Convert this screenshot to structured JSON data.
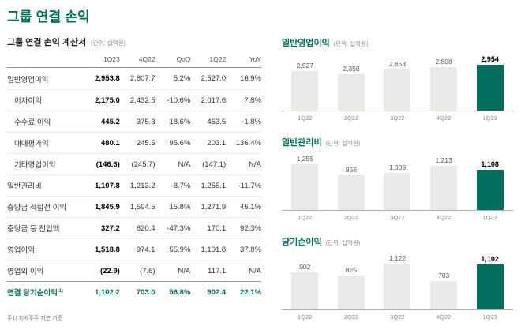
{
  "page": {
    "title": "그룹 연결 손익",
    "footnote": "주1) 지배주주 지분 기준"
  },
  "income_table": {
    "title": "그룹 연결 손익 계산서",
    "unit": "(단위: 십억원)",
    "columns": [
      "1Q23",
      "4Q22",
      "QoQ",
      "1Q22",
      "YoY"
    ],
    "rows": [
      {
        "label": "일반영업이익",
        "values": [
          "2,953.8",
          "2,807.7",
          "5.2%",
          "2,527.0",
          "16.9%"
        ]
      },
      {
        "label": "이자이익",
        "indent": true,
        "values": [
          "2,175.0",
          "2,432.5",
          "-10.6%",
          "2,017.6",
          "7.8%"
        ]
      },
      {
        "label": "수수료 이익",
        "indent": true,
        "values": [
          "445.2",
          "375.3",
          "18.6%",
          "453.5",
          "-1.8%"
        ]
      },
      {
        "label": "매매평가익",
        "indent": true,
        "values": [
          "480.1",
          "245.5",
          "95.6%",
          "203.1",
          "136.4%"
        ]
      },
      {
        "label": "기타영업이익",
        "indent": true,
        "values": [
          "(146.6)",
          "(245.7)",
          "N/A",
          "(147.1)",
          "N/A"
        ]
      },
      {
        "label": "일반관리비",
        "values": [
          "1,107.8",
          "1,213.2",
          "-8.7%",
          "1,255.1",
          "-11.7%"
        ]
      },
      {
        "label": "충당금 적립전 이익",
        "values": [
          "1,845.9",
          "1,594.5",
          "15.8%",
          "1,271.9",
          "45.1%"
        ]
      },
      {
        "label": "충당금 등 전입액",
        "values": [
          "327.2",
          "620.4",
          "-47.3%",
          "170.1",
          "92.3%"
        ]
      },
      {
        "label": "영업이익",
        "values": [
          "1,518.8",
          "974.1",
          "55.9%",
          "1,101.8",
          "37.8%"
        ]
      },
      {
        "label": "영업외 이익",
        "values": [
          "(22.9)",
          "(7.6)",
          "N/A",
          "117.1",
          "N/A"
        ]
      },
      {
        "label": "연결 당기순이익",
        "sup": "1)",
        "highlight": true,
        "values": [
          "1,102.2",
          "703.0",
          "56.8%",
          "902.4",
          "22.1%"
        ]
      }
    ]
  },
  "chart_data": [
    {
      "type": "bar",
      "title": "일반영업이익",
      "unit": "(단위: 십억원)",
      "categories": [
        "1Q22",
        "2Q22",
        "3Q22",
        "4Q22",
        "1Q23"
      ],
      "values": [
        2527,
        2350,
        2653,
        2808,
        2954
      ],
      "highlight_index": 4,
      "bar_color": "#eae9e5",
      "highlight_color": "#00705c",
      "ylim": [
        0,
        2954
      ],
      "grid": false,
      "legend": "none"
    },
    {
      "type": "bar",
      "title": "일반관리비",
      "unit": "(단위: 십억원)",
      "categories": [
        "1Q22",
        "2Q22",
        "3Q22",
        "4Q22",
        "1Q23"
      ],
      "values": [
        1255,
        956,
        1009,
        1213,
        1108
      ],
      "highlight_index": 4,
      "bar_color": "#eae9e5",
      "highlight_color": "#00705c",
      "ylim": [
        0,
        1255
      ],
      "grid": false,
      "legend": "none"
    },
    {
      "type": "bar",
      "title": "당기순이익",
      "unit": "(단위: 십억원)",
      "categories": [
        "1Q22",
        "2Q22",
        "3Q22",
        "4Q22",
        "1Q23"
      ],
      "values": [
        902,
        825,
        1122,
        703,
        1102
      ],
      "highlight_index": 4,
      "bar_color": "#eae9e5",
      "highlight_color": "#00705c",
      "ylim": [
        0,
        1122
      ],
      "grid": false,
      "legend": "none"
    }
  ],
  "colors": {
    "accent_green": "#00705c",
    "bar_gray": "#eae9e5"
  }
}
